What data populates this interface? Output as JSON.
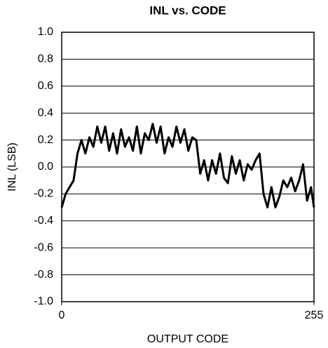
{
  "chart_data": {
    "type": "line",
    "title": "INL vs. CODE",
    "xlabel": "OUTPUT CODE",
    "ylabel": "INL (LSB)",
    "x": [
      0,
      4,
      8,
      12,
      16,
      20,
      24,
      28,
      32,
      36,
      40,
      44,
      48,
      52,
      56,
      60,
      64,
      68,
      72,
      76,
      80,
      84,
      88,
      92,
      96,
      100,
      104,
      108,
      112,
      116,
      120,
      124,
      128,
      132,
      136,
      140,
      144,
      148,
      152,
      156,
      160,
      164,
      168,
      172,
      176,
      180,
      184,
      188,
      192,
      196,
      200,
      204,
      208,
      212,
      216,
      220,
      224,
      228,
      232,
      236,
      240,
      244,
      248,
      252,
      255
    ],
    "series": [
      {
        "name": "INL",
        "color": "#000000",
        "values": [
          -0.3,
          -0.2,
          -0.15,
          -0.1,
          0.1,
          0.2,
          0.1,
          0.22,
          0.15,
          0.3,
          0.18,
          0.3,
          0.12,
          0.25,
          0.1,
          0.28,
          0.15,
          0.22,
          0.12,
          0.3,
          0.1,
          0.25,
          0.2,
          0.32,
          0.18,
          0.3,
          0.1,
          0.22,
          0.15,
          0.3,
          0.18,
          0.28,
          0.12,
          0.22,
          0.2,
          -0.05,
          0.05,
          -0.1,
          0.05,
          -0.05,
          0.1,
          -0.08,
          -0.12,
          0.08,
          -0.05,
          0.05,
          -0.1,
          0.02,
          -0.02,
          0.05,
          0.1,
          -0.2,
          -0.3,
          -0.15,
          -0.3,
          -0.22,
          -0.1,
          -0.15,
          -0.08,
          -0.18,
          -0.1,
          0.02,
          -0.25,
          -0.15,
          -0.3
        ]
      }
    ],
    "xlim": [
      0,
      255
    ],
    "xticks": [
      0,
      255
    ],
    "ylim": [
      -1,
      1
    ],
    "yticks": [
      {
        "value": -1,
        "label": "-1.0"
      },
      -0.8,
      -0.6,
      -0.4,
      -0.2,
      {
        "value": 0,
        "label": "0.0"
      },
      0.2,
      0.4,
      0.6,
      0.8,
      {
        "value": 1,
        "label": "1.0"
      }
    ],
    "grid": true
  }
}
